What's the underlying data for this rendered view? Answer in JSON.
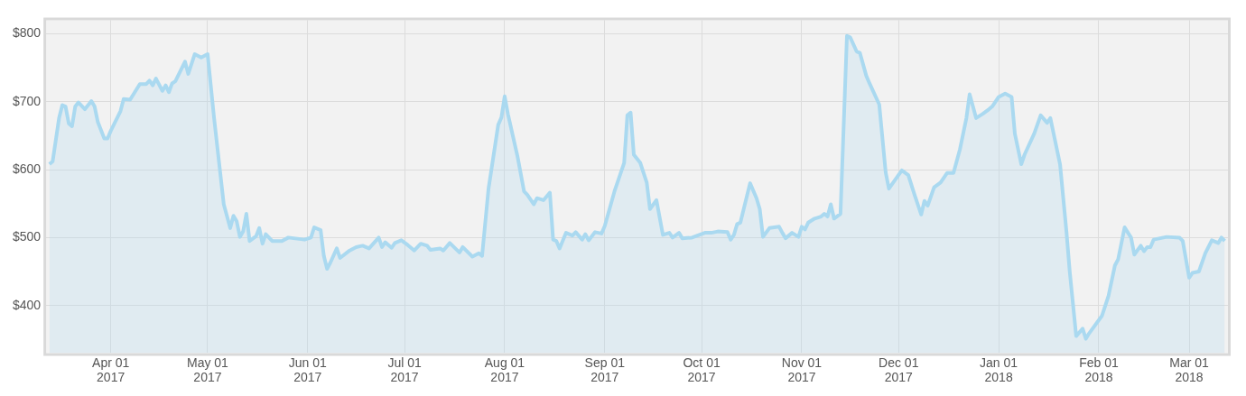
{
  "chart_data": {
    "type": "area",
    "xlim": [
      "2017-03-12",
      "2018-03-13"
    ],
    "ylim": [
      330,
      820
    ],
    "xticks": [
      {
        "value": "2017-04-01",
        "label": "Apr 01\n2017"
      },
      {
        "value": "2017-05-01",
        "label": "May 01\n2017"
      },
      {
        "value": "2017-06-01",
        "label": "Jun 01\n2017"
      },
      {
        "value": "2017-07-01",
        "label": "Jul 01\n2017"
      },
      {
        "value": "2017-08-01",
        "label": "Aug 01\n2017"
      },
      {
        "value": "2017-09-01",
        "label": "Sep 01\n2017"
      },
      {
        "value": "2017-10-01",
        "label": "Oct 01\n2017"
      },
      {
        "value": "2017-11-01",
        "label": "Nov 01\n2017"
      },
      {
        "value": "2017-12-01",
        "label": "Dec 01\n2017"
      },
      {
        "value": "2018-01-01",
        "label": "Jan 01\n2018"
      },
      {
        "value": "2018-02-01",
        "label": "Feb 01\n2018"
      },
      {
        "value": "2018-03-01",
        "label": "Mar 01\n2018"
      }
    ],
    "yticks": [
      {
        "value": 400,
        "label": "$400"
      },
      {
        "value": 500,
        "label": "$500"
      },
      {
        "value": 600,
        "label": "$600"
      },
      {
        "value": 700,
        "label": "$700"
      },
      {
        "value": 800,
        "label": "$800"
      }
    ],
    "grid": true,
    "legend": false,
    "marker": "none",
    "x": [
      "2017-03-13",
      "2017-03-14",
      "2017-03-16",
      "2017-03-17",
      "2017-03-18",
      "2017-03-19",
      "2017-03-20",
      "2017-03-21",
      "2017-03-22",
      "2017-03-24",
      "2017-03-26",
      "2017-03-27",
      "2017-03-28",
      "2017-03-30",
      "2017-03-31",
      "2017-04-01",
      "2017-04-04",
      "2017-04-05",
      "2017-04-07",
      "2017-04-10",
      "2017-04-12",
      "2017-04-13",
      "2017-04-14",
      "2017-04-15",
      "2017-04-17",
      "2017-04-18",
      "2017-04-19",
      "2017-04-20",
      "2017-04-21",
      "2017-04-24",
      "2017-04-25",
      "2017-04-27",
      "2017-04-29",
      "2017-05-01",
      "2017-05-03",
      "2017-05-06",
      "2017-05-08",
      "2017-05-09",
      "2017-05-10",
      "2017-05-11",
      "2017-05-12",
      "2017-05-13",
      "2017-05-14",
      "2017-05-16",
      "2017-05-17",
      "2017-05-18",
      "2017-05-19",
      "2017-05-21",
      "2017-05-24",
      "2017-05-26",
      "2017-05-31",
      "2017-06-02",
      "2017-06-03",
      "2017-06-05",
      "2017-06-06",
      "2017-06-07",
      "2017-06-08",
      "2017-06-10",
      "2017-06-11",
      "2017-06-14",
      "2017-06-16",
      "2017-06-18",
      "2017-06-20",
      "2017-06-23",
      "2017-06-24",
      "2017-06-25",
      "2017-06-27",
      "2017-06-28",
      "2017-06-30",
      "2017-07-02",
      "2017-07-04",
      "2017-07-06",
      "2017-07-08",
      "2017-07-09",
      "2017-07-12",
      "2017-07-13",
      "2017-07-15",
      "2017-07-18",
      "2017-07-19",
      "2017-07-22",
      "2017-07-24",
      "2017-07-25",
      "2017-07-27",
      "2017-07-30",
      "2017-07-31",
      "2017-08-01",
      "2017-08-02",
      "2017-08-05",
      "2017-08-07",
      "2017-08-08",
      "2017-08-10",
      "2017-08-11",
      "2017-08-13",
      "2017-08-15",
      "2017-08-16",
      "2017-08-17",
      "2017-08-18",
      "2017-08-20",
      "2017-08-22",
      "2017-08-23",
      "2017-08-25",
      "2017-08-26",
      "2017-08-27",
      "2017-08-29",
      "2017-08-31",
      "2017-09-01",
      "2017-09-04",
      "2017-09-07",
      "2017-09-08",
      "2017-09-09",
      "2017-09-10",
      "2017-09-12",
      "2017-09-14",
      "2017-09-15",
      "2017-09-17",
      "2017-09-19",
      "2017-09-21",
      "2017-09-22",
      "2017-09-24",
      "2017-09-25",
      "2017-09-28",
      "2017-10-02",
      "2017-10-04",
      "2017-10-06",
      "2017-10-09",
      "2017-10-10",
      "2017-10-11",
      "2017-10-12",
      "2017-10-13",
      "2017-10-16",
      "2017-10-18",
      "2017-10-19",
      "2017-10-20",
      "2017-10-22",
      "2017-10-25",
      "2017-10-26",
      "2017-10-27",
      "2017-10-29",
      "2017-10-31",
      "2017-11-01",
      "2017-11-02",
      "2017-11-03",
      "2017-11-05",
      "2017-11-07",
      "2017-11-08",
      "2017-11-09",
      "2017-11-10",
      "2017-11-11",
      "2017-11-13",
      "2017-11-15",
      "2017-11-16",
      "2017-11-18",
      "2017-11-19",
      "2017-11-21",
      "2017-11-22",
      "2017-11-25",
      "2017-11-27",
      "2017-11-28",
      "2017-12-02",
      "2017-12-04",
      "2017-12-06",
      "2017-12-08",
      "2017-12-09",
      "2017-12-10",
      "2017-12-12",
      "2017-12-14",
      "2017-12-16",
      "2017-12-18",
      "2017-12-20",
      "2017-12-22",
      "2017-12-23",
      "2017-12-25",
      "2017-12-27",
      "2017-12-29",
      "2017-12-30",
      "2018-01-01",
      "2018-01-03",
      "2018-01-05",
      "2018-01-06",
      "2018-01-08",
      "2018-01-09",
      "2018-01-12",
      "2018-01-14",
      "2018-01-16",
      "2018-01-17",
      "2018-01-20",
      "2018-01-22",
      "2018-01-23",
      "2018-01-25",
      "2018-01-27",
      "2018-01-28",
      "2018-01-29",
      "2018-02-02",
      "2018-02-04",
      "2018-02-06",
      "2018-02-07",
      "2018-02-09",
      "2018-02-11",
      "2018-02-12",
      "2018-02-14",
      "2018-02-15",
      "2018-02-16",
      "2018-02-17",
      "2018-02-18",
      "2018-02-22",
      "2018-02-26",
      "2018-02-27",
      "2018-03-01",
      "2018-03-02",
      "2018-03-04",
      "2018-03-06",
      "2018-03-08",
      "2018-03-10",
      "2018-03-11",
      "2018-03-12"
    ],
    "series": [
      {
        "color": "#aad9f0",
        "values": [
          608,
          612,
          676,
          695,
          693,
          668,
          664,
          693,
          699,
          689,
          701,
          693,
          670,
          646,
          646,
          657,
          686,
          704,
          703,
          726,
          726,
          731,
          724,
          734,
          716,
          724,
          714,
          727,
          730,
          759,
          741,
          770,
          765,
          770,
          676,
          549,
          514,
          532,
          524,
          501,
          509,
          535,
          495,
          502,
          514,
          491,
          505,
          495,
          495,
          500,
          497,
          500,
          515,
          511,
          473,
          454,
          463,
          484,
          470,
          481,
          486,
          488,
          484,
          500,
          486,
          493,
          485,
          492,
          496,
          489,
          481,
          491,
          488,
          482,
          484,
          481,
          492,
          478,
          486,
          472,
          477,
          473,
          572,
          666,
          677,
          708,
          682,
          619,
          568,
          563,
          549,
          558,
          555,
          566,
          497,
          495,
          484,
          507,
          503,
          508,
          497,
          505,
          496,
          508,
          506,
          517,
          568,
          610,
          680,
          684,
          622,
          610,
          581,
          542,
          555,
          504,
          507,
          500,
          507,
          499,
          500,
          507,
          507,
          509,
          508,
          497,
          504,
          520,
          522,
          580,
          558,
          542,
          501,
          514,
          516,
          507,
          499,
          507,
          501,
          516,
          512,
          522,
          528,
          531,
          535,
          531,
          549,
          528,
          535,
          797,
          795,
          774,
          772,
          738,
          727,
          696,
          596,
          572,
          599,
          592,
          562,
          534,
          554,
          547,
          574,
          581,
          595,
          595,
          630,
          676,
          711,
          676,
          682,
          689,
          693,
          707,
          712,
          707,
          653,
          608,
          622,
          653,
          680,
          669,
          676,
          608,
          508,
          450,
          355,
          366,
          351,
          359,
          385,
          414,
          459,
          468,
          515,
          500,
          475,
          488,
          480,
          486,
          486,
          497,
          501,
          500,
          495,
          441,
          448,
          450,
          477,
          496,
          492,
          500,
          495
        ]
      }
    ]
  }
}
